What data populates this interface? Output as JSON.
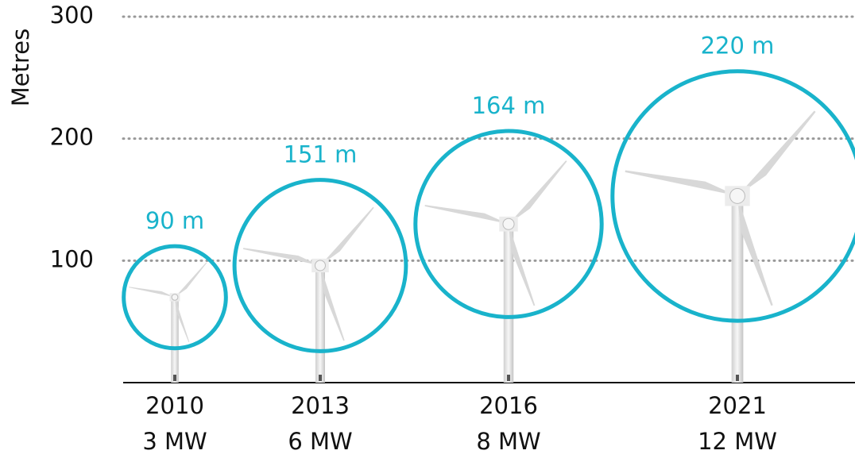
{
  "chart_data": {
    "type": "bubble",
    "y_label": "Metres",
    "categories": [
      "2010",
      "2013",
      "2016",
      "2021"
    ],
    "capacities": [
      "3 MW",
      "6 MW",
      "8 MW",
      "12 MW"
    ],
    "hub_heights": [
      70,
      96,
      130,
      153
    ],
    "values": [
      90,
      151,
      164,
      220
    ],
    "value_labels": [
      "90 m",
      "151 m",
      "164 m",
      "220 m"
    ],
    "color": "#19b3cb",
    "ylim": [
      0,
      300
    ],
    "yticks": [
      100,
      200,
      300
    ],
    "grid": true
  }
}
